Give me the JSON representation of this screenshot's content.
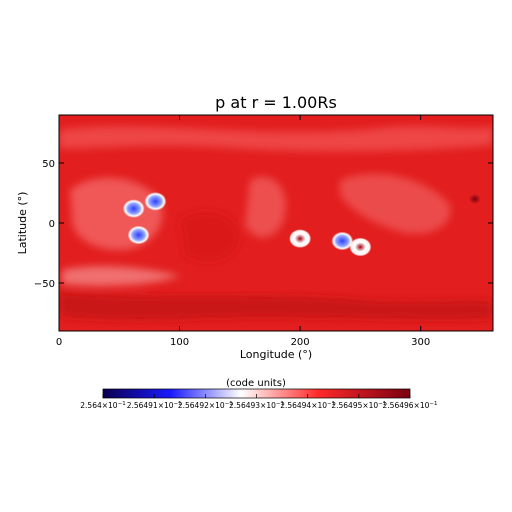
{
  "chart_data": {
    "type": "heatmap",
    "title": "p at r = 1.00Rs",
    "xlabel": "Longitude (°)",
    "ylabel": "Latitude (°)",
    "xlim": [
      0,
      360
    ],
    "ylim": [
      -90,
      90
    ],
    "xticks": [
      "0",
      "100",
      "200",
      "300"
    ],
    "xtick_values": [
      0,
      100,
      200,
      300
    ],
    "yticks": [
      "50",
      "0",
      "−50"
    ],
    "ytick_values": [
      50,
      0,
      -50
    ],
    "colorbar": {
      "label": "(code units)",
      "tick_labels": [
        "2.564×10",
        "2.56491×10",
        "2.56492×10",
        "2.56493×10",
        "2.56494×10",
        "2.56495×10",
        "2.56496×10"
      ],
      "tick_exponent": "−1",
      "colors": [
        "#0a0050",
        "#1a1aff",
        "#ffffff",
        "#ff2a2a",
        "#7a0010"
      ]
    },
    "colors": {
      "background_field": "#e21e1e",
      "band_light": "#f06a6a",
      "band_dark": "#c51212",
      "low_blue": "#3a55ff"
    },
    "features": [
      {
        "lon": 62,
        "lat": 12,
        "kind": "low"
      },
      {
        "lon": 66,
        "lat": -10,
        "kind": "low"
      },
      {
        "lon": 80,
        "lat": 18,
        "kind": "low"
      },
      {
        "lon": 200,
        "lat": -13,
        "kind": "high"
      },
      {
        "lon": 235,
        "lat": -15,
        "kind": "low"
      },
      {
        "lon": 250,
        "lat": -20,
        "kind": "high"
      },
      {
        "lon": 345,
        "lat": 20,
        "kind": "dark"
      }
    ]
  }
}
